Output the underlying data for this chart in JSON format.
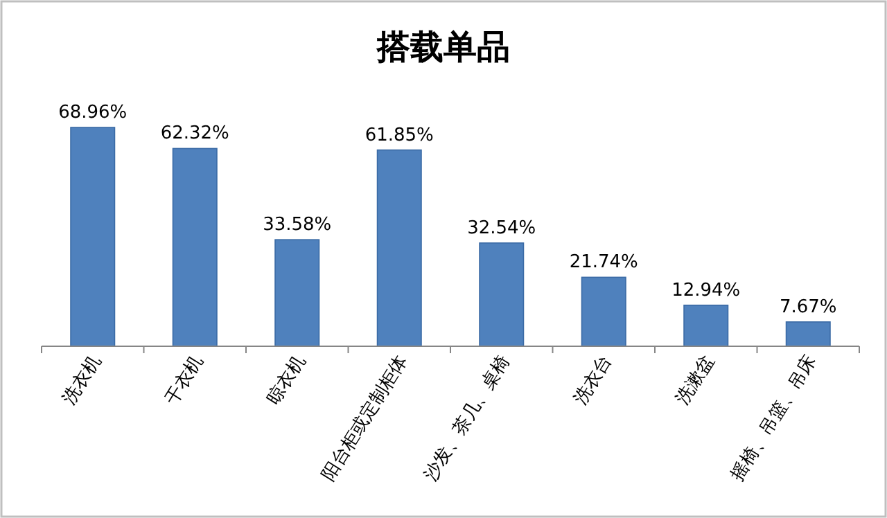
{
  "chart_data": {
    "type": "bar",
    "title": "搭载单品",
    "categories": [
      "洗衣机",
      "干衣机",
      "晾衣机",
      "阳台柜或定制柜体",
      "沙发、茶几、桌椅",
      "洗衣台",
      "洗漱盆",
      "摇椅、吊篮、吊床"
    ],
    "values": [
      68.96,
      62.32,
      33.58,
      61.85,
      32.54,
      21.74,
      12.94,
      7.67
    ],
    "value_labels": [
      "68.96%",
      "62.32%",
      "33.58%",
      "61.85%",
      "32.54%",
      "21.74%",
      "12.94%",
      "7.67%"
    ],
    "color": "#4f81bd"
  }
}
